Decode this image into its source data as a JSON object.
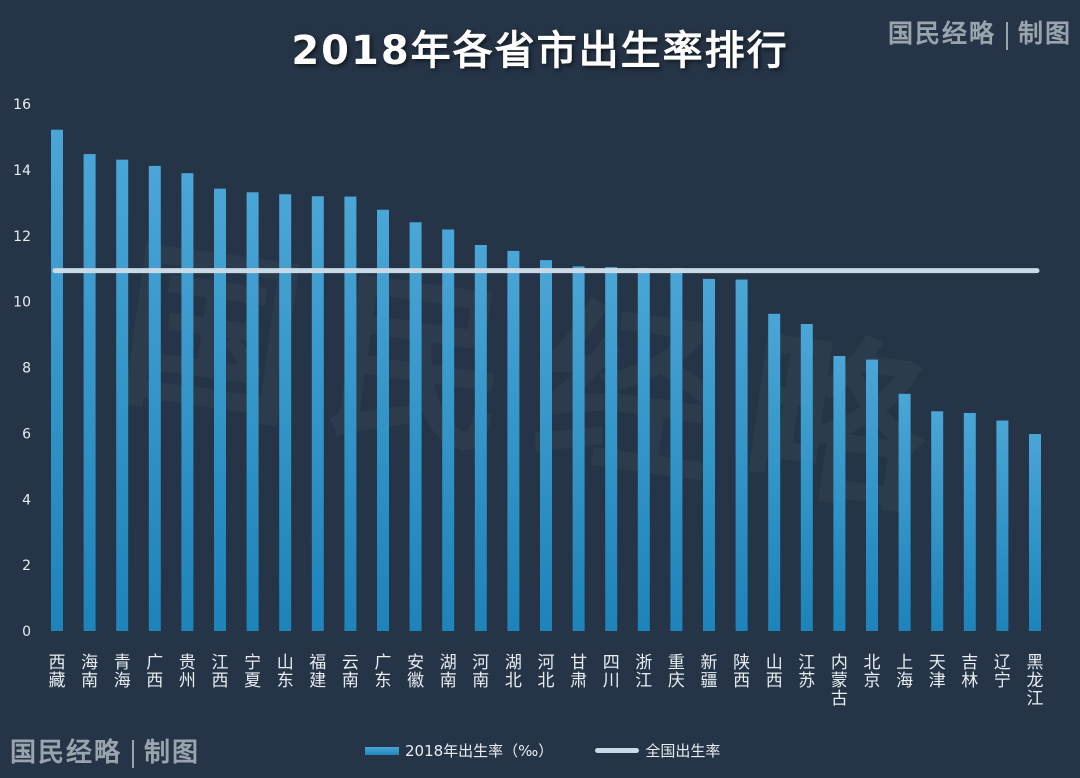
{
  "title": "2018年各省市出生率排行",
  "brand": {
    "name": "国民经略",
    "suffix": "制图"
  },
  "watermark": "国民经略",
  "legend": {
    "bar_label": "2018年出生率（‰）",
    "line_label": "全国出生率"
  },
  "colors": {
    "background": "#253446",
    "bar": "#2b95cc",
    "line": "#c9dae6",
    "text": "#e8edf2"
  },
  "chart_data": {
    "type": "bar",
    "categories": [
      "西藏",
      "海南",
      "青海",
      "广西",
      "贵州",
      "江西",
      "宁夏",
      "山东",
      "福建",
      "云南",
      "广东",
      "安徽",
      "湖南",
      "河南",
      "湖北",
      "河北",
      "甘肃",
      "四川",
      "浙江",
      "重庆",
      "新疆",
      "陕西",
      "山西",
      "江苏",
      "内蒙古",
      "北京",
      "上海",
      "天津",
      "吉林",
      "辽宁",
      "黑龙江"
    ],
    "series": [
      {
        "name": "2018年出生率（‰）",
        "values": [
          15.22,
          14.48,
          14.31,
          14.12,
          13.9,
          13.43,
          13.32,
          13.26,
          13.2,
          13.19,
          12.79,
          12.41,
          12.19,
          11.72,
          11.54,
          11.26,
          11.07,
          11.05,
          11.02,
          11.02,
          10.69,
          10.67,
          9.63,
          9.32,
          8.35,
          8.24,
          7.2,
          6.67,
          6.62,
          6.39,
          5.98
        ]
      },
      {
        "name": "全国出生率",
        "type": "line",
        "value": 10.94
      }
    ],
    "yticks": [
      0,
      2,
      4,
      6,
      8,
      10,
      12,
      14,
      16
    ],
    "ylim": [
      0,
      16
    ],
    "grid": false,
    "legend_position": "bottom"
  }
}
